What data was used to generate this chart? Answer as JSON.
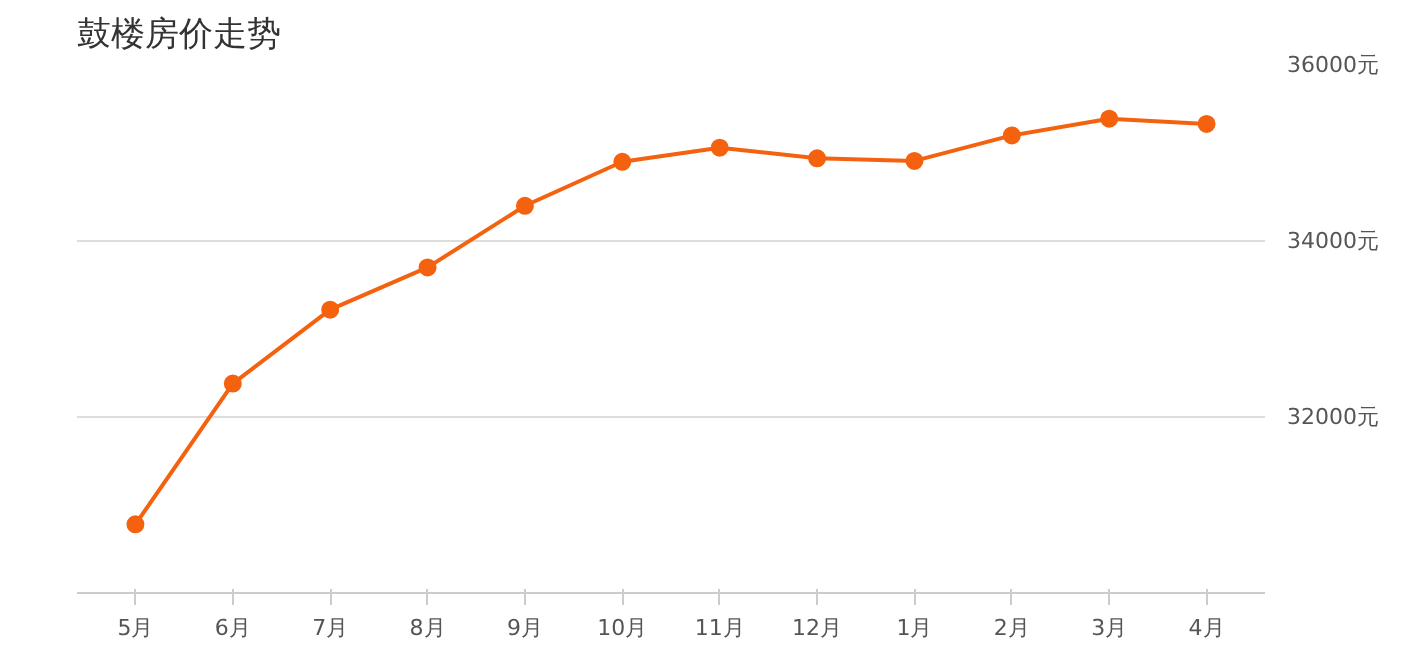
{
  "chart_data": {
    "type": "line",
    "title": "鼓楼房价走势",
    "categories": [
      "5月",
      "6月",
      "7月",
      "8月",
      "9月",
      "10月",
      "11月",
      "12月",
      "1月",
      "2月",
      "3月",
      "4月"
    ],
    "series": [
      {
        "color": "#f5620f",
        "values": [
          30780,
          32380,
          33220,
          33700,
          34400,
          34900,
          35060,
          34940,
          34910,
          35200,
          35390,
          35330
        ]
      }
    ],
    "ylim": [
      30000,
      36000
    ],
    "yticks": [
      {
        "value": 32000,
        "label": "32000元"
      },
      {
        "value": 34000,
        "label": "34000元"
      },
      {
        "value": 36000,
        "label": "36000元"
      }
    ],
    "grid": "y",
    "marker": "circle",
    "line_style": "solid"
  }
}
